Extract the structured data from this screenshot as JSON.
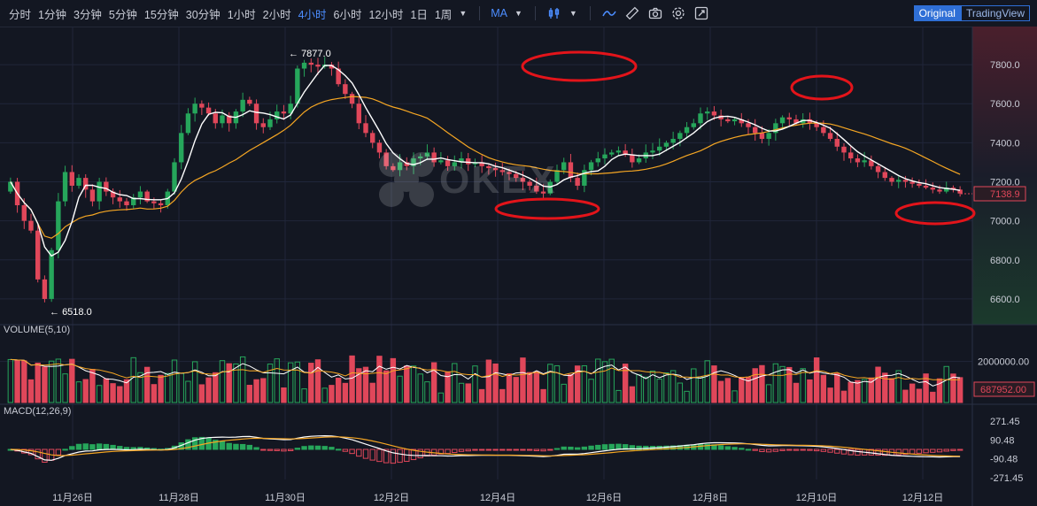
{
  "toolbar": {
    "timeframes": [
      "分时",
      "1分钟",
      "3分钟",
      "5分钟",
      "15分钟",
      "30分钟",
      "1小时",
      "2小时",
      "4小时",
      "6小时",
      "12小时",
      "1日",
      "1周"
    ],
    "active_timeframe": "4小时",
    "indicator": "MA",
    "icons": [
      "candle-type-icon",
      "line-chart-icon",
      "ruler-icon",
      "camera-icon",
      "settings-icon",
      "fullscreen-icon"
    ],
    "views": [
      "Original",
      "TradingView"
    ],
    "active_view": "Original"
  },
  "watermark": "OKEX",
  "colors": {
    "up": "#26a65b",
    "down": "#e0475a",
    "ma_fast": "#ffffff",
    "ma_slow": "#f5a623",
    "bg": "#131722",
    "grid": "#20263a",
    "annotation": "#e3141a"
  },
  "panes": {
    "volume_label": "VOLUME(5,10)",
    "macd_label": "MACD(12,26,9)"
  },
  "chart_data": {
    "type": "candlestick",
    "x_tick_labels": [
      "11月26日",
      "11月28日",
      "11月30日",
      "12月2日",
      "12月4日",
      "12月6日",
      "12月8日",
      "12月10日",
      "12月12日"
    ],
    "price_axis": {
      "ticks": [
        "7800.0",
        "7600.0",
        "7400.0",
        "7200.0",
        "7000.0",
        "6800.0",
        "6600.0"
      ],
      "ylim": [
        6500,
        7950
      ]
    },
    "current_price": "7138.9",
    "high_label": "7877.0",
    "low_label": "6518.0",
    "volume_axis": {
      "ticks": [
        "2000000.00"
      ],
      "current": "687952.00"
    },
    "macd_axis": {
      "ticks": [
        "271.45",
        "90.48",
        "-90.48",
        "-271.45"
      ]
    },
    "series": [
      {
        "name": "close",
        "values": [
          7200,
          7080,
          7000,
          6950,
          6700,
          6600,
          6850,
          7100,
          7250,
          7180,
          7220,
          7160,
          7100,
          7200,
          7150,
          7120,
          7100,
          7080,
          7120,
          7150,
          7100,
          7090,
          7080,
          7150,
          7300,
          7450,
          7550,
          7600,
          7580,
          7550,
          7500,
          7540,
          7500,
          7560,
          7620,
          7600,
          7500,
          7480,
          7520,
          7560,
          7550,
          7600,
          7780,
          7810,
          7800,
          7790,
          7800,
          7780,
          7700,
          7650,
          7600,
          7500,
          7450,
          7400,
          7350,
          7280,
          7260,
          7300,
          7280,
          7320,
          7330,
          7350,
          7300,
          7310,
          7280,
          7300,
          7320,
          7290,
          7300,
          7280,
          7270,
          7260,
          7250,
          7240,
          7220,
          7200,
          7180,
          7150,
          7140,
          7200,
          7260,
          7300,
          7220,
          7180,
          7260,
          7300,
          7320,
          7340,
          7350,
          7360,
          7340,
          7300,
          7320,
          7350,
          7360,
          7380,
          7400,
          7420,
          7450,
          7480,
          7500,
          7550,
          7560,
          7540,
          7520,
          7510,
          7520,
          7500,
          7480,
          7450,
          7420,
          7450,
          7500,
          7530,
          7520,
          7500,
          7520,
          7500,
          7480,
          7450,
          7420,
          7380,
          7350,
          7320,
          7300,
          7310,
          7280,
          7250,
          7220,
          7200,
          7210,
          7200,
          7190,
          7180,
          7170,
          7160,
          7150,
          7170,
          7160,
          7140
        ]
      }
    ]
  }
}
